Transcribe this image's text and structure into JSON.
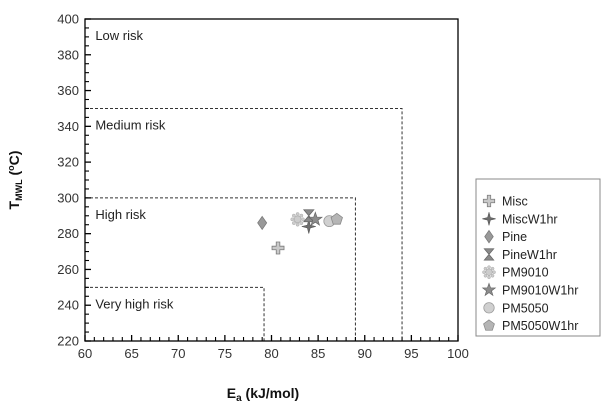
{
  "chart_data": {
    "type": "scatter",
    "xlabel": {
      "main": "E",
      "sub": "a",
      "rest": " (kJ/mol)"
    },
    "ylabel": {
      "main": "T",
      "sub": "MWL",
      "rest": " (",
      "sup": "o",
      "end": "C)"
    },
    "xlim": [
      60,
      100
    ],
    "ylim": [
      220,
      400
    ],
    "x_ticks": [
      60,
      65,
      70,
      75,
      80,
      85,
      90,
      95,
      100
    ],
    "y_ticks": [
      220,
      240,
      260,
      280,
      300,
      320,
      340,
      360,
      380,
      400
    ],
    "grid": false,
    "legend_position": "right",
    "risk_zones": [
      {
        "label": "Low risk",
        "x_max": 100,
        "y_max": 400,
        "label_x": 61,
        "label_y": 396
      },
      {
        "label": "Medium risk",
        "x_max": 94,
        "y_max": 350,
        "label_x": 61,
        "label_y": 346
      },
      {
        "label": "High risk",
        "x_max": 89,
        "y_max": 300,
        "label_x": 61,
        "label_y": 296
      },
      {
        "label": "Very high risk",
        "x_max": 79.2,
        "y_max": 250,
        "label_x": 61,
        "label_y": 246
      }
    ],
    "series": [
      {
        "name": "Misc",
        "marker": "plus",
        "color": "#c9c9c9",
        "x": 80.7,
        "y": 272
      },
      {
        "name": "MiscW1hr",
        "marker": "cross4",
        "color": "#6e6e6e",
        "x": 84.0,
        "y": 284
      },
      {
        "name": "Pine",
        "marker": "diamond",
        "color": "#999999",
        "x": 79.0,
        "y": 286
      },
      {
        "name": "PineW1hr",
        "marker": "hourglass",
        "color": "#8a8a8a",
        "x": 84.0,
        "y": 290
      },
      {
        "name": "PM9010",
        "marker": "sun",
        "color": "#cccccc",
        "x": 82.8,
        "y": 288
      },
      {
        "name": "PM9010W1hr",
        "marker": "star",
        "color": "#8c8c8c",
        "x": 84.7,
        "y": 288
      },
      {
        "name": "PM5050",
        "marker": "circle",
        "color": "#d0d0d0",
        "x": 86.2,
        "y": 287
      },
      {
        "name": "PM5050W1hr",
        "marker": "pentagon",
        "color": "#b5b5b5",
        "x": 87.0,
        "y": 288
      }
    ]
  }
}
